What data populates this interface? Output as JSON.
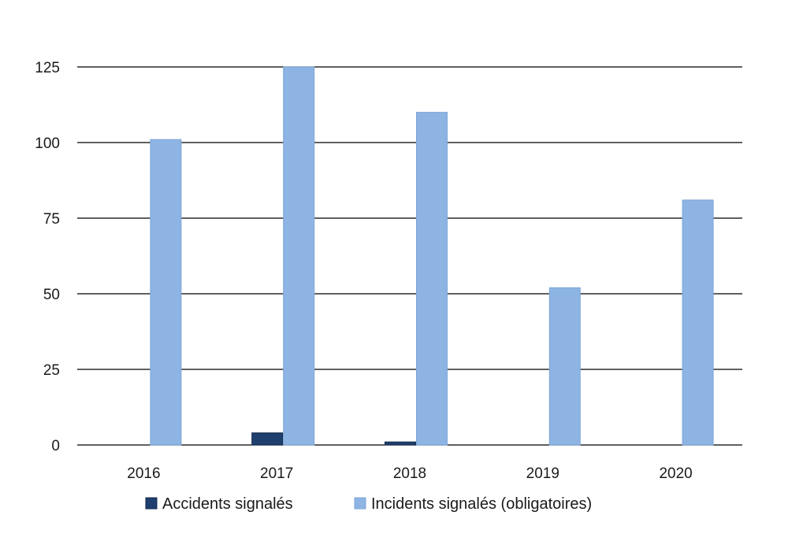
{
  "chart_data": {
    "type": "bar",
    "title": "",
    "xlabel": "",
    "ylabel": "",
    "categories": [
      "2016",
      "2017",
      "2018",
      "2019",
      "2020"
    ],
    "ylim": [
      0,
      125
    ],
    "yticks": [
      0,
      25,
      50,
      75,
      100,
      125
    ],
    "grid": true,
    "legend_position": "bottom",
    "series": [
      {
        "name": "Accidents signalés",
        "color": "#1f3f6e",
        "values": [
          0,
          4,
          1,
          0,
          0
        ]
      },
      {
        "name": "Incidents signalés (obligatoires)",
        "color": "#8eb4e3",
        "values": [
          101,
          125,
          110,
          52,
          81
        ]
      }
    ]
  }
}
